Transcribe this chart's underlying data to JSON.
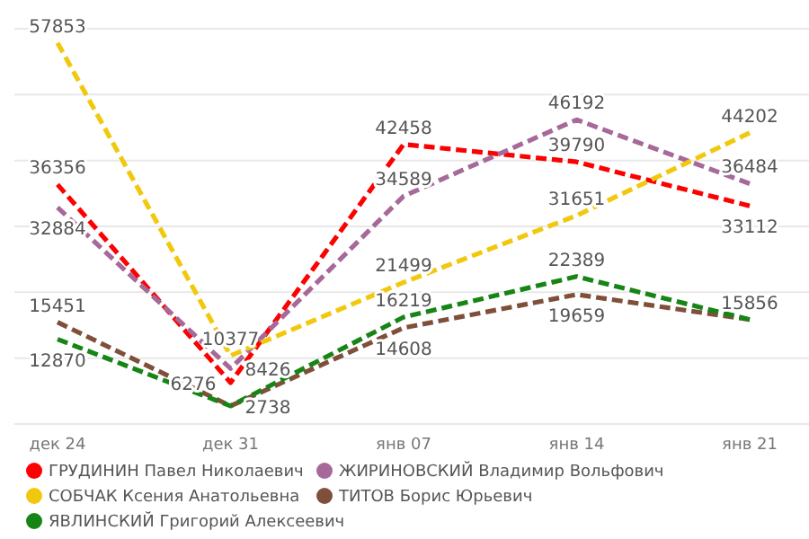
{
  "chart_data": {
    "type": "line",
    "categories": [
      "дек 24",
      "дек 31",
      "янв 07",
      "янв 14",
      "янв 21"
    ],
    "ylim": [
      0,
      60000
    ],
    "yticks": [
      {
        "value": 0,
        "label": null
      },
      {
        "value": 10000,
        "label": null
      },
      {
        "value": 20000,
        "label": null
      },
      {
        "value": 30000,
        "label": null
      },
      {
        "value": 40000,
        "label": null
      },
      {
        "value": 50000,
        "label": null
      },
      {
        "value": 60000,
        "label": null
      }
    ],
    "tick_labels": "x",
    "grid": "y",
    "legend": "bottom",
    "line_style": "dashed",
    "marker": "none",
    "series": [
      {
        "name": "ГРУДИНИН Павел Николаевич",
        "color": "#fd0000",
        "values": [
          36356,
          6276,
          42458,
          39790,
          33112
        ],
        "value_labels": [
          "36356",
          "6276",
          "42458",
          "39790",
          "33112"
        ]
      },
      {
        "name": "ЖИРИНОВСКИЙ Владимир Вольфович",
        "color": "#a66999",
        "values": [
          32884,
          8426,
          34589,
          46192,
          36484
        ],
        "value_labels": [
          "32884",
          "8426",
          "34589",
          "46192",
          "36484"
        ]
      },
      {
        "name": "СОБЧАК Ксения Анатольевна",
        "color": "#f2c80f",
        "values": [
          57853,
          10377,
          21499,
          31651,
          44202
        ],
        "value_labels": [
          "57853",
          "10377",
          "21499",
          "31651",
          "44202"
        ]
      },
      {
        "name": "ТИТОВ Борис Юрьевич",
        "color": "#7f4f3a",
        "values": [
          15451,
          2738,
          14608,
          19659,
          15856
        ],
        "value_labels": [
          "15451",
          null,
          "14608",
          "19659",
          null
        ]
      },
      {
        "name": "ЯВЛИНСКИЙ Григорий Алексеевич",
        "color": "#168516",
        "values": [
          12870,
          2738,
          16219,
          22389,
          15856
        ],
        "value_labels": [
          "12870",
          "2738",
          "16219",
          "22389",
          "15856"
        ]
      }
    ]
  }
}
